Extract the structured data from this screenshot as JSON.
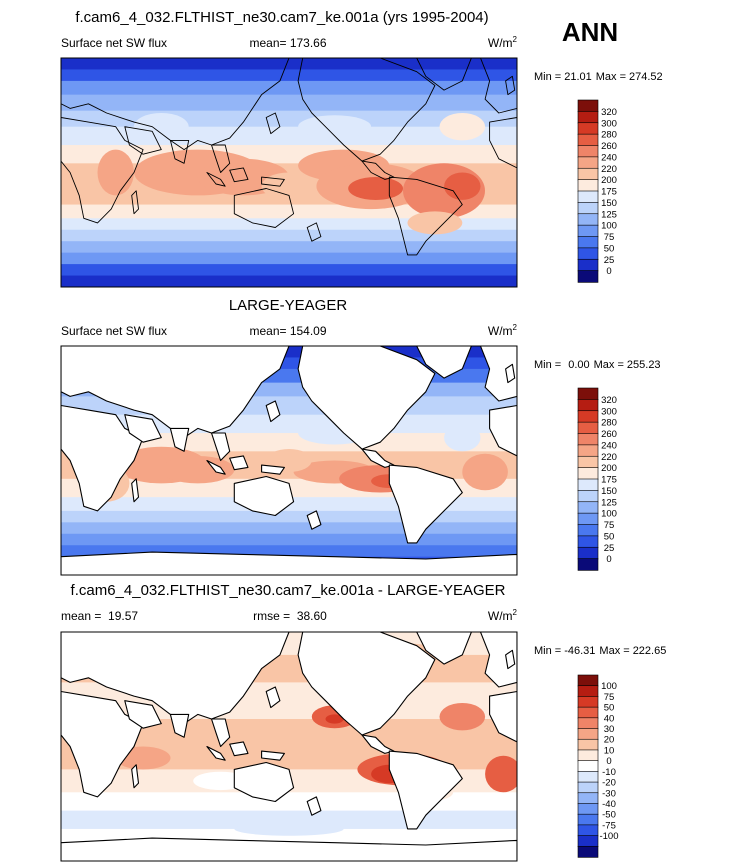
{
  "season": "ANN",
  "colors": {
    "abs_levels": [
      "#0a0a78",
      "#1a2fc9",
      "#2f55e6",
      "#4a78ef",
      "#6e98f4",
      "#93b5f7",
      "#bcd3fa",
      "#dde9fc",
      "#fdebde",
      "#f9c5a6",
      "#f5a586",
      "#ef8468",
      "#e65e43",
      "#d63a25",
      "#b51d12",
      "#7c0f0a"
    ],
    "diff_levels": [
      "#0a0a78",
      "#1a2fc9",
      "#2f55e6",
      "#4a78ef",
      "#6e98f4",
      "#93b5f7",
      "#bcd3fa",
      "#dde9fc",
      "#ffffff",
      "#fdebde",
      "#f9c5a6",
      "#f5a586",
      "#ef8468",
      "#e65e43",
      "#d63a25",
      "#b51d12",
      "#7c0f0a"
    ],
    "land": "#ffffff",
    "coast": "#000000"
  },
  "chart_data": [
    {
      "type": "heatmap",
      "title": "f.cam6_4_032.FLTHIST_ne30.cam7_ke.001a (yrs 1995-2004)",
      "left_label": "Surface net SW flux",
      "center_label": "mean= 173.66",
      "units": "W/m",
      "units_sup": "2",
      "stats_min_label": "Min =",
      "stats_min": "21.01",
      "stats_max_label": "Max =",
      "stats_max": "274.52",
      "colorbar_labels": [
        "320",
        "300",
        "280",
        "260",
        "240",
        "220",
        "200",
        "175",
        "150",
        "125",
        "100",
        "75",
        "50",
        "25",
        "0"
      ],
      "masked_land": false
    },
    {
      "type": "heatmap",
      "title": "LARGE-YEAGER",
      "left_label": "Surface net SW flux",
      "center_label": "mean= 154.09",
      "units": "W/m",
      "units_sup": "2",
      "stats_min_label": "Min =",
      "stats_min": "0.00",
      "stats_max_label": "Max =",
      "stats_max": "255.23",
      "colorbar_labels": [
        "320",
        "300",
        "280",
        "260",
        "240",
        "220",
        "200",
        "175",
        "150",
        "125",
        "100",
        "75",
        "50",
        "25",
        "0"
      ],
      "masked_land": true
    },
    {
      "type": "heatmap",
      "title": "f.cam6_4_032.FLTHIST_ne30.cam7_ke.001a - LARGE-YEAGER",
      "left_label": "mean =  19.57",
      "center_label": "rmse =  38.60",
      "units": "W/m",
      "units_sup": "2",
      "stats_min_label": "Min =",
      "stats_min": "-46.31",
      "stats_max_label": "Max =",
      "stats_max": "222.65",
      "colorbar_labels": [
        "100",
        "75",
        "50",
        "40",
        "30",
        "20",
        "10",
        "0",
        "-10",
        "-20",
        "-30",
        "-40",
        "-50",
        "-75",
        "-100"
      ],
      "masked_land": true
    }
  ]
}
